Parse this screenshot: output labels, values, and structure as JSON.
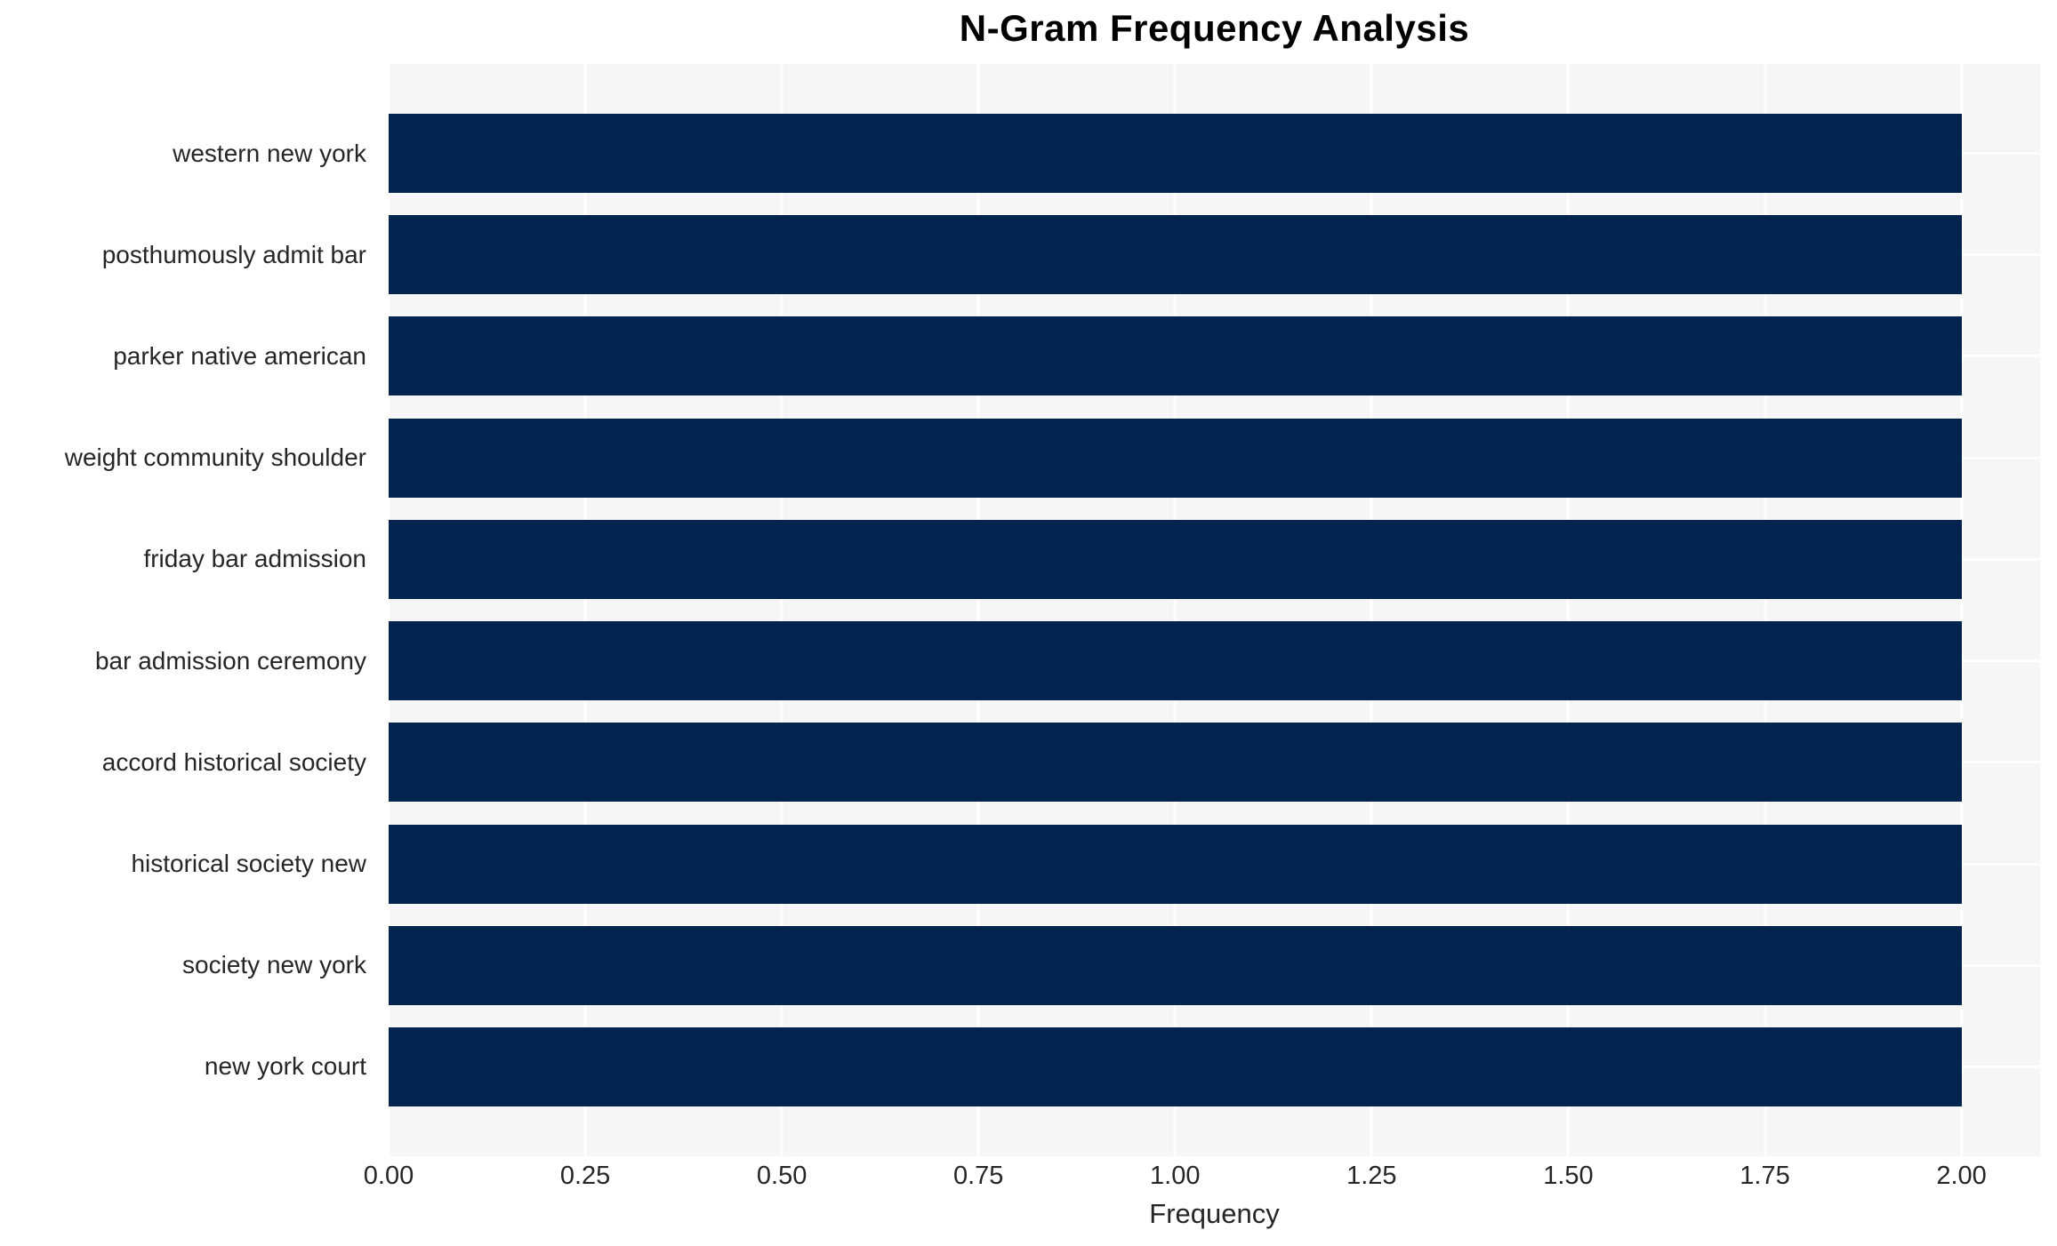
{
  "chart_data": {
    "type": "bar",
    "orientation": "horizontal",
    "title": "N-Gram Frequency Analysis",
    "xlabel": "Frequency",
    "ylabel": "",
    "categories": [
      "western new york",
      "posthumously admit bar",
      "parker native american",
      "weight community shoulder",
      "friday bar admission",
      "bar admission ceremony",
      "accord historical society",
      "historical society new",
      "society new york",
      "new york court"
    ],
    "values": [
      2,
      2,
      2,
      2,
      2,
      2,
      2,
      2,
      2,
      2
    ],
    "xlim": [
      0,
      2.1
    ],
    "xticks": [
      "0.00",
      "0.25",
      "0.50",
      "0.75",
      "1.00",
      "1.25",
      "1.50",
      "1.75",
      "2.00"
    ],
    "grid": true,
    "legend": null,
    "colors": {
      "bar": "#02244E",
      "plot_bg": "#F6F6F7",
      "grid": "#FFFFFF",
      "text": "#262626",
      "title": "#000000"
    }
  }
}
